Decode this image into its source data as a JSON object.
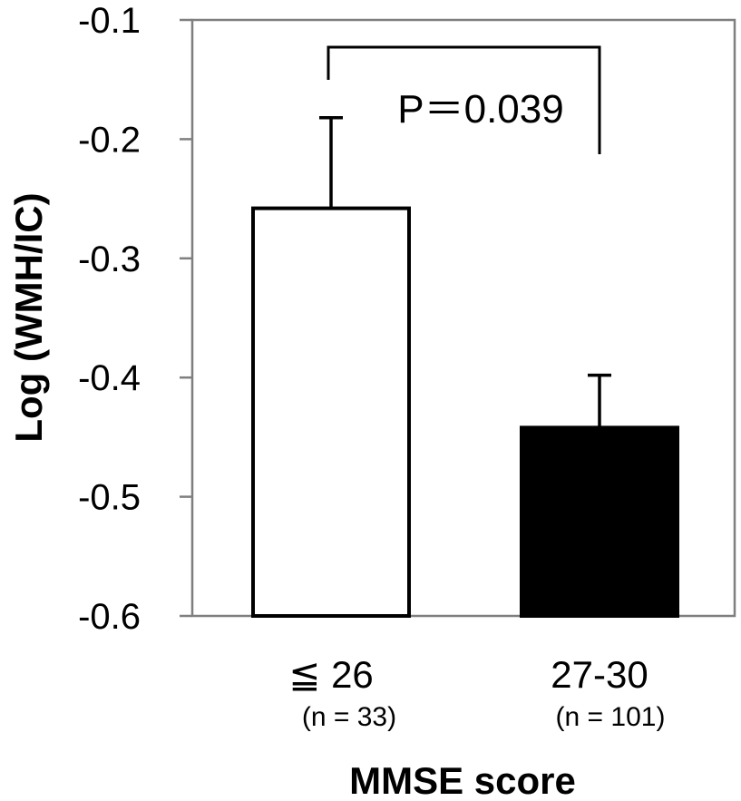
{
  "chart_data": {
    "type": "bar",
    "title": "",
    "xlabel": "MMSE score",
    "ylabel": "Log (WMH/IC)",
    "ylim": [
      -0.6,
      -0.1
    ],
    "yticks": [
      "-0.1",
      "-0.2",
      "-0.3",
      "-0.4",
      "-0.5",
      "-0.6"
    ],
    "categories": [
      "≦ 26",
      "27-30"
    ],
    "category_notes": [
      "(n = 33)",
      "(n = 101)"
    ],
    "values": [
      -0.258,
      -0.442
    ],
    "error_upper": [
      -0.182,
      -0.398
    ],
    "bar_colors": [
      "#ffffff",
      "#000000"
    ],
    "grid": false,
    "legend": "none",
    "annotation": {
      "text": "P＝0.039",
      "between": [
        0,
        1
      ]
    }
  }
}
